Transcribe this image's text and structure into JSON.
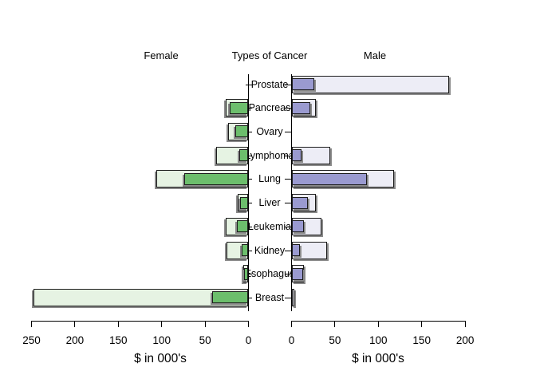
{
  "chart_data": {
    "type": "bar",
    "variant": "mirrored-pyramid",
    "title_left": "Female",
    "title_center": "Types of Cancer",
    "title_right": "Male",
    "categories": [
      "Prostate",
      "Pancreas",
      "Ovary",
      "Lymphoma",
      "Lung",
      "Liver",
      "Leukemia",
      "Kidney",
      "Esophagus",
      "Breast"
    ],
    "series": [
      {
        "name": "female_outer",
        "side": "left",
        "shade": "light",
        "values": [
          0,
          26,
          23,
          37,
          106,
          12,
          26,
          24.5,
          5.5,
          247
        ]
      },
      {
        "name": "female_inner",
        "side": "left",
        "shade": "dark",
        "values": [
          0,
          21,
          15,
          10.5,
          73.5,
          9,
          12.5,
          7.5,
          4.5,
          41
        ]
      },
      {
        "name": "male_outer",
        "side": "right",
        "shade": "light",
        "values": [
          181,
          27.5,
          0,
          44.5,
          118,
          27.5,
          34,
          40,
          13.5,
          2.6
        ]
      },
      {
        "name": "male_inner",
        "side": "right",
        "shade": "dark",
        "values": [
          26,
          21.5,
          0,
          11,
          86,
          18,
          14,
          9,
          12.5,
          0.5
        ]
      }
    ],
    "left_axis": {
      "ticks": [
        250,
        200,
        150,
        100,
        50,
        0
      ],
      "label": "$ in 000's",
      "range": [
        0,
        250
      ]
    },
    "right_axis": {
      "ticks": [
        0,
        50,
        100,
        150,
        200
      ],
      "label": "$ in 000's",
      "range": [
        0,
        200
      ]
    },
    "legend": null,
    "grid": false,
    "colors": {
      "female_light": "#e6f3e3",
      "female_dark": "#6cbe6c",
      "male_light": "#ededf6",
      "male_dark": "#9a9ad0",
      "bar_border": "#1c1c1c",
      "shadow": "#8a8a8a",
      "axis": "#000000",
      "background": "#ffffff"
    }
  }
}
